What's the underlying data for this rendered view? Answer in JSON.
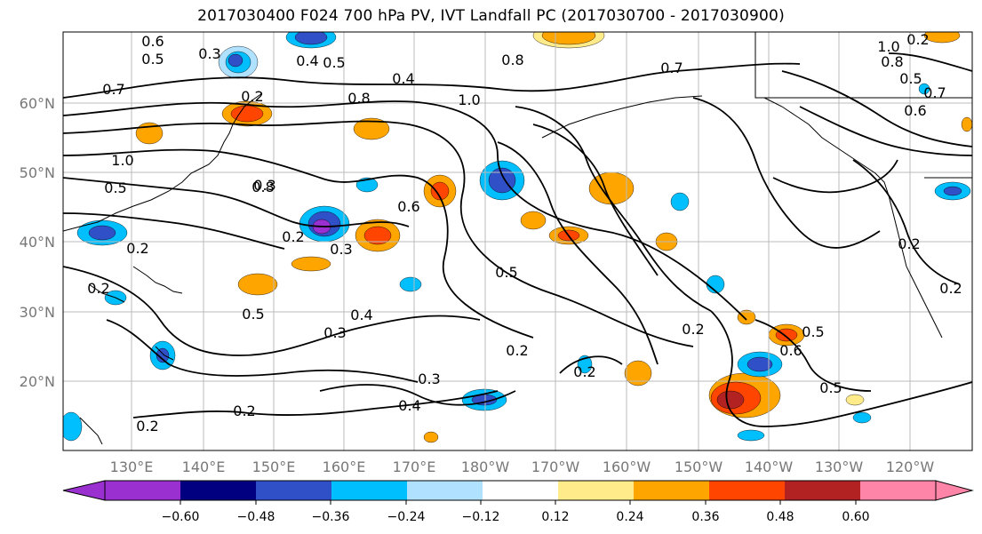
{
  "title": "2017030400 F024 700 hPa PV, IVT Landfall PC (2017030700 - 2017030900)",
  "map": {
    "lon_labels": [
      "130°E",
      "140°E",
      "150°E",
      "160°E",
      "170°E",
      "180°W",
      "170°W",
      "160°W",
      "150°W",
      "140°W",
      "130°W",
      "120°W"
    ],
    "lat_labels": [
      "60°N",
      "50°N",
      "40°N",
      "30°N",
      "20°N"
    ],
    "contour_labels": [
      "0.6",
      "0.5",
      "0.3",
      "0.4",
      "0.5",
      "0.8",
      "0.7",
      "0.7",
      "0.2",
      "0.4",
      "1.0",
      "0.8",
      "1.0",
      "0.2",
      "0.8",
      "0.5",
      "0.6",
      "0.5",
      "1.0",
      "0.3",
      "0.8",
      "0.7",
      "0.2",
      "0.3",
      "0.2",
      "0.6",
      "0.5",
      "0.4",
      "0.3",
      "0.2",
      "0.2",
      "0.3",
      "0.4",
      "0.2",
      "0.2",
      "0.2",
      "0.5",
      "0.6",
      "0.5",
      "0.5",
      "0.2",
      "0.2",
      "0.2"
    ]
  },
  "colorbar": {
    "tick_labels": [
      "−0.60",
      "−0.48",
      "−0.36",
      "−0.24",
      "−0.12",
      "0.12",
      "0.24",
      "0.36",
      "0.48",
      "0.60"
    ],
    "colors": [
      "#9b30d0",
      "#000080",
      "#3050c8",
      "#00bfff",
      "#b0e2ff",
      "#ffffff",
      "#ffeb8a",
      "#ffa500",
      "#ff4500",
      "#b22222",
      "#ff85a8",
      "#ff85a8"
    ]
  },
  "palette": {
    "purple": "#9b30d0",
    "navy": "#000080",
    "blue": "#3050c8",
    "cyan": "#00bfff",
    "lightblue": "#b0e2ff",
    "yellow": "#ffeb8a",
    "orange": "#ffa500",
    "redorange": "#ff4500",
    "darkred": "#b22222",
    "pink": "#ff85a8"
  }
}
